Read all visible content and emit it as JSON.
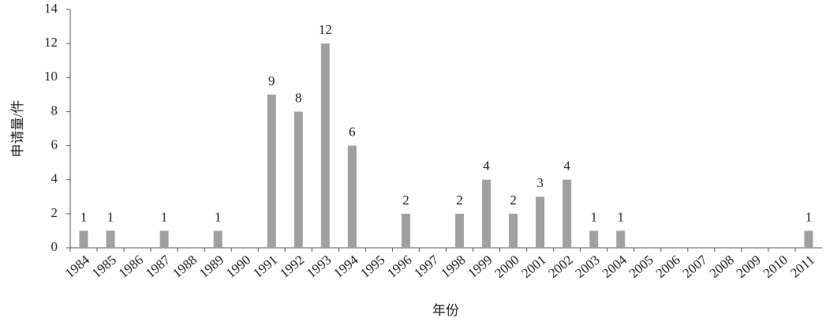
{
  "chart_data": {
    "type": "bar",
    "y_label": "申请量/件",
    "x_label": "年份",
    "categories": [
      "1984",
      "1985",
      "1986",
      "1987",
      "1988",
      "1989",
      "1990",
      "1991",
      "1992",
      "1993",
      "1994",
      "1995",
      "1996",
      "1997",
      "1998",
      "1999",
      "2000",
      "2001",
      "2002",
      "2003",
      "2004",
      "2005",
      "2006",
      "2007",
      "2008",
      "2009",
      "2010",
      "2011"
    ],
    "values": [
      1,
      1,
      0,
      1,
      0,
      1,
      0,
      9,
      8,
      12,
      6,
      0,
      2,
      0,
      2,
      4,
      2,
      3,
      4,
      1,
      1,
      0,
      0,
      0,
      0,
      0,
      0,
      1
    ],
    "color": "#a0a0a0",
    "ylim": [
      0,
      14
    ],
    "yticks": [
      0,
      2,
      4,
      6,
      8,
      10,
      12,
      14
    ],
    "grid": false
  }
}
